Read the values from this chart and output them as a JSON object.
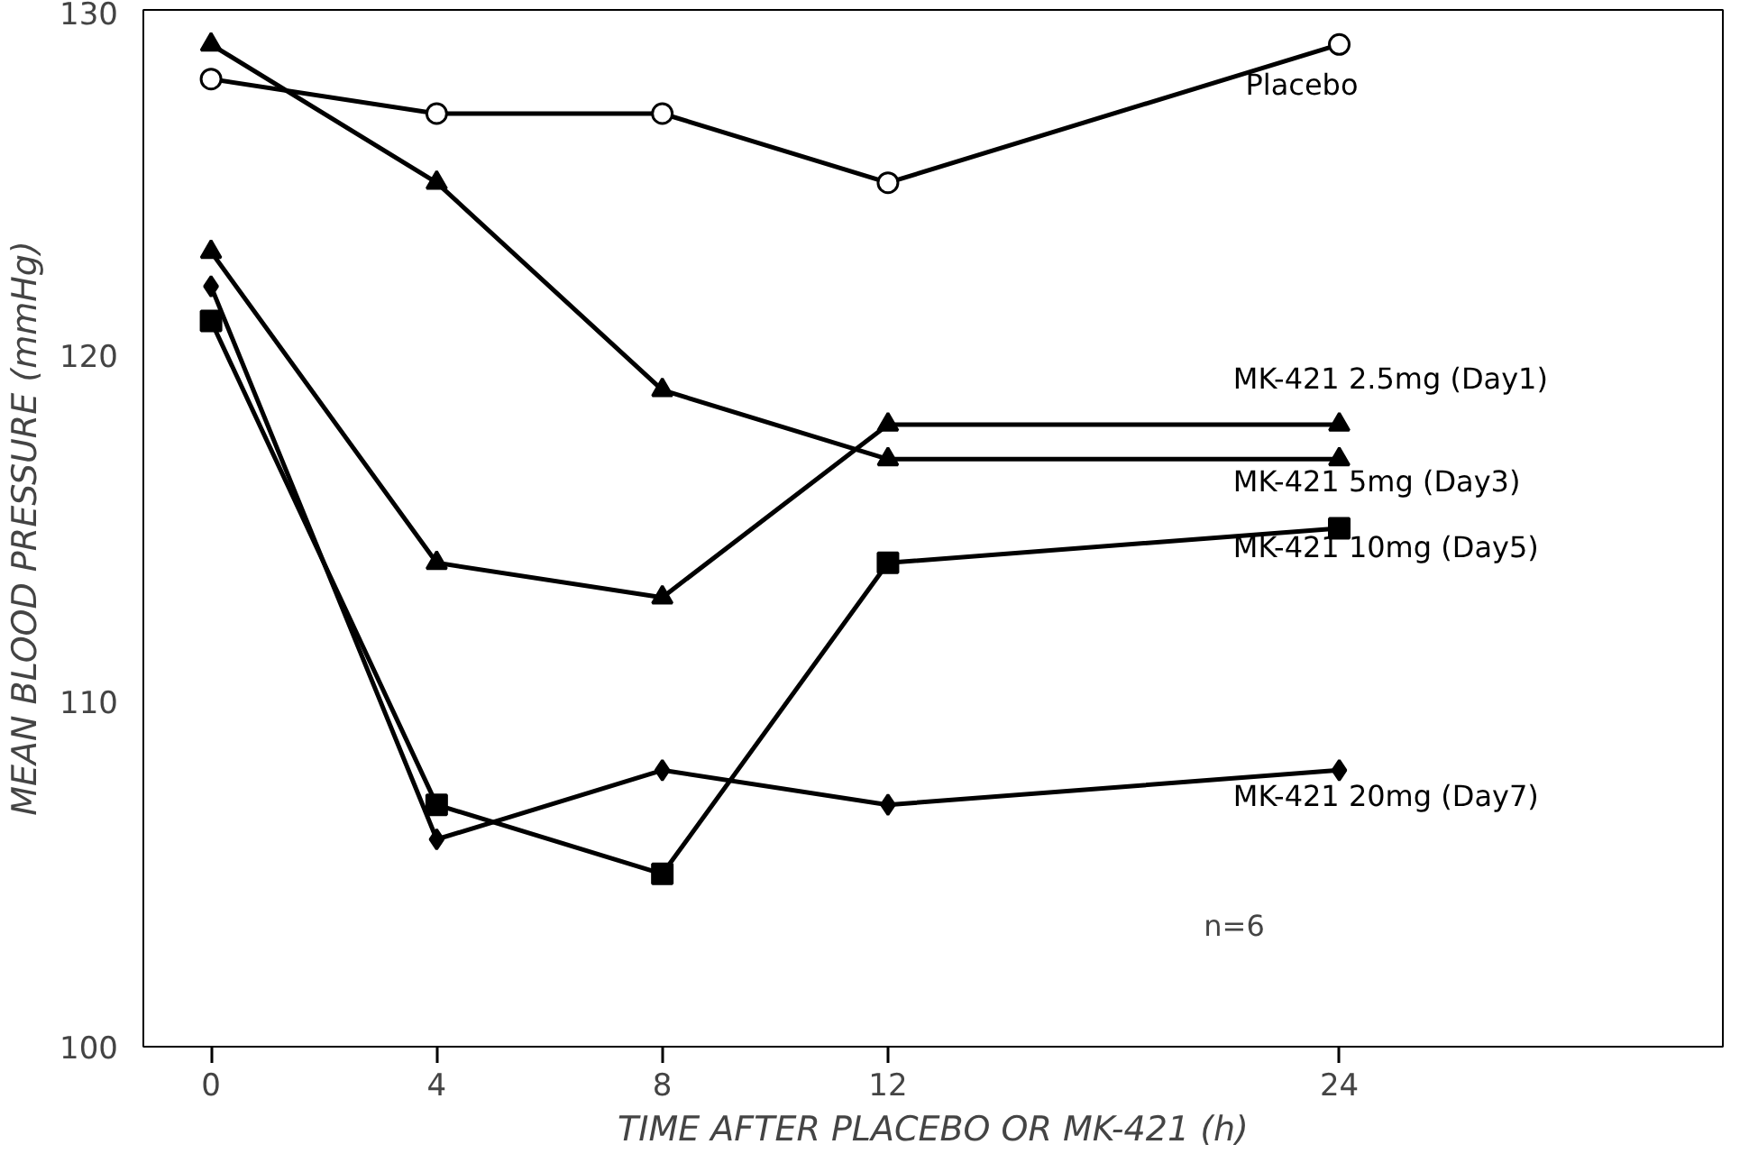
{
  "chart_data": {
    "type": "line",
    "xlabel": "TIME AFTER PLACEBO OR MK-421 (h)",
    "ylabel": "MEAN BLOOD PRESSURE (mmHg)",
    "categories": [
      "0",
      "4",
      "8",
      "12",
      null,
      "24"
    ],
    "ylim": [
      100,
      130
    ],
    "yticks": [
      100,
      110,
      120,
      130
    ],
    "grid": false,
    "legend": false,
    "line_style": "solid",
    "series": [
      {
        "name": "Placebo",
        "color": "#000000",
        "marker": "circle",
        "values": [
          128,
          127,
          127,
          125,
          null,
          129
        ]
      },
      {
        "name": "MK-421 2.5mg (Day1)",
        "color": "#000000",
        "marker": "triangle",
        "values": [
          123,
          114,
          113,
          118,
          null,
          118
        ]
      },
      {
        "name": "MK-421 5mg (Day3)",
        "color": "#000000",
        "marker": "triangle",
        "values": [
          129,
          125,
          119,
          117,
          null,
          117
        ]
      },
      {
        "name": "MK-421 10mg (Day5)",
        "color": "#000000",
        "marker": "square",
        "values": [
          121,
          107,
          105,
          114,
          null,
          115
        ]
      },
      {
        "name": "MK-421 20mg (Day7)",
        "color": "#000000",
        "marker": "diamond",
        "values": [
          122,
          106,
          108,
          107,
          null,
          108
        ]
      }
    ],
    "annotations": [
      "n=6"
    ]
  }
}
